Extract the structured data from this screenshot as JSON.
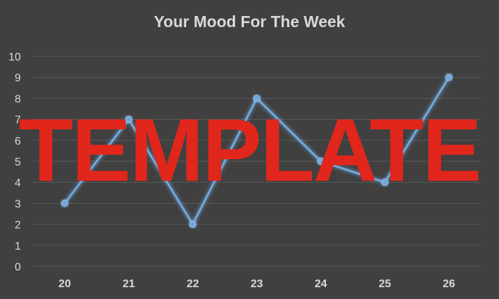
{
  "chart_data": {
    "type": "line",
    "title": "Your Mood For The Week",
    "xlabel": "",
    "ylabel": "",
    "categories": [
      "20",
      "21",
      "22",
      "23",
      "24",
      "25",
      "26"
    ],
    "series": [
      {
        "values": [
          3,
          7,
          2,
          8,
          5,
          4,
          9
        ]
      }
    ],
    "ylim": [
      0,
      10
    ],
    "yticks": [
      "0",
      "1",
      "2",
      "3",
      "4",
      "5",
      "6",
      "7",
      "8",
      "9",
      "10"
    ],
    "grid": true,
    "legend": "none",
    "colors": {
      "background": "#404040",
      "line": "#6fa8dc",
      "grid": "#5a5a5a",
      "text": "#d9d9d9"
    }
  },
  "watermark": "TEMPLATE"
}
